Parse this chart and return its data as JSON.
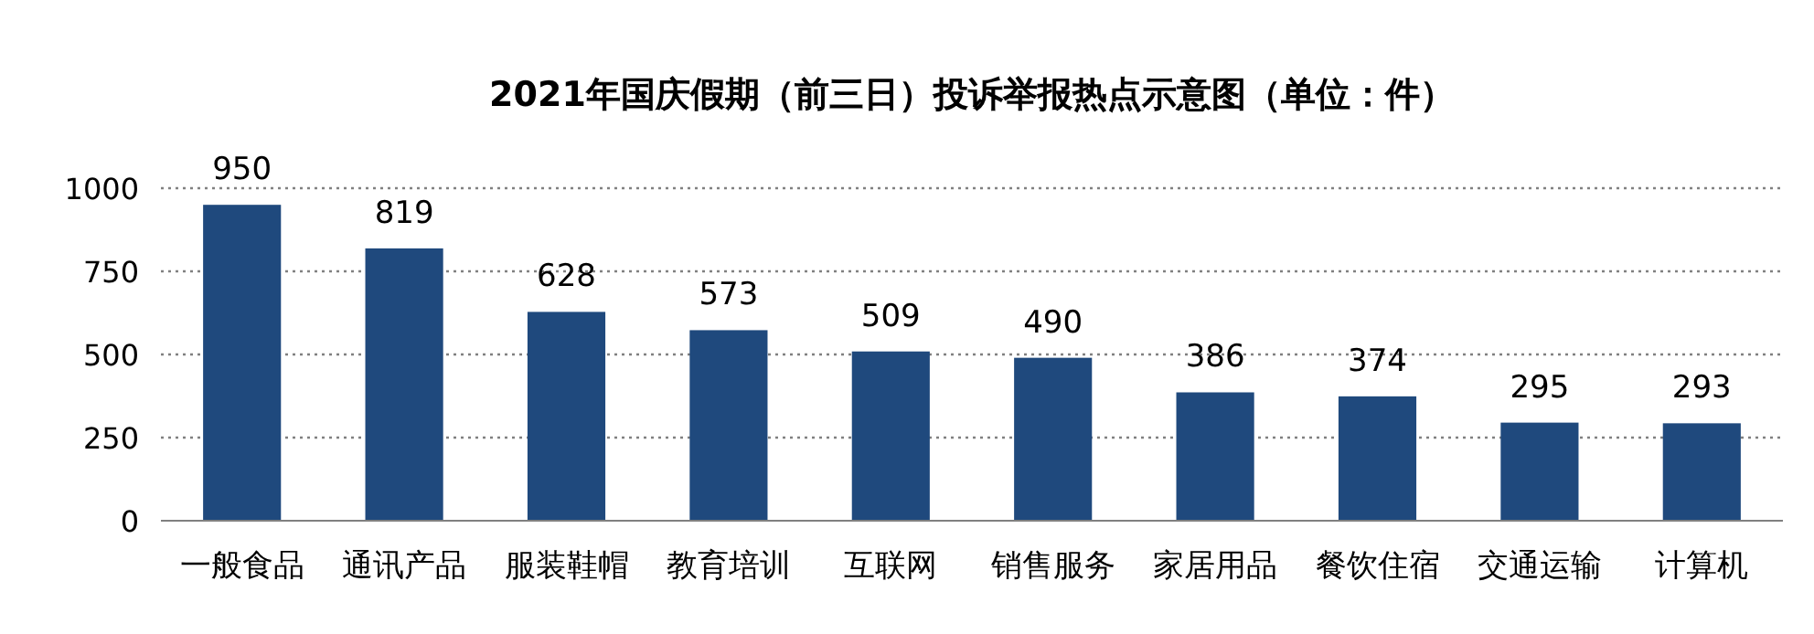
{
  "chart_data": {
    "type": "bar",
    "title": "2021年国庆假期（前三日）投诉举报热点示意图（单位：件）",
    "categories": [
      "一般食品",
      "通讯产品",
      "服装鞋帽",
      "教育培训",
      "互联网",
      "销售服务",
      "家居用品",
      "餐饮住宿",
      "交通运输",
      "计算机"
    ],
    "values": [
      950,
      819,
      628,
      573,
      509,
      490,
      386,
      374,
      295,
      293
    ],
    "color": "#1f497d",
    "ylim": [
      0,
      1000
    ],
    "yticks": [
      0,
      250,
      500,
      750,
      1000
    ],
    "grid": "y",
    "data_labels": true
  }
}
